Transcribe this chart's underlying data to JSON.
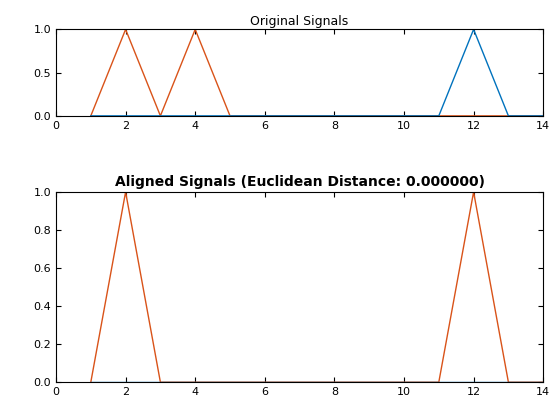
{
  "title1": "Original Signals",
  "title2": "Aligned Signals (Euclidean Distance: 0.000000)",
  "xlim": [
    0,
    14
  ],
  "ylim1": [
    0,
    1
  ],
  "ylim2": [
    0,
    1
  ],
  "xticks": [
    0,
    2,
    4,
    6,
    8,
    10,
    12,
    14
  ],
  "yticks1": [
    0,
    0.5,
    1
  ],
  "yticks2": [
    0,
    0.2,
    0.4,
    0.6,
    0.8,
    1
  ],
  "orange_color": "#D95319",
  "blue_color": "#0072BD",
  "signal1_orange_x": [
    1,
    2,
    3,
    4,
    5,
    6,
    7,
    8,
    9,
    10,
    11,
    12,
    13,
    14
  ],
  "signal1_orange_y": [
    0,
    1,
    0,
    1,
    0,
    0,
    0,
    0,
    0,
    0,
    0,
    0,
    0,
    0
  ],
  "signal1_blue_x": [
    1,
    2,
    3,
    4,
    5,
    6,
    7,
    8,
    9,
    10,
    11,
    12,
    13,
    14
  ],
  "signal1_blue_y": [
    0,
    0,
    0,
    0,
    0,
    0,
    0,
    0,
    0,
    0,
    0,
    1,
    0,
    0
  ],
  "signal2_orange_x": [
    1,
    2,
    3,
    4,
    5,
    6,
    7,
    8,
    9,
    10,
    11,
    12,
    13,
    14
  ],
  "signal2_orange_y": [
    0,
    1,
    0,
    0,
    0,
    0,
    0,
    0,
    0,
    0,
    0,
    1,
    0,
    0
  ],
  "signal2_blue_x": [
    1,
    2,
    3,
    4,
    5,
    6,
    7,
    8,
    9,
    10,
    11,
    12,
    13,
    14
  ],
  "signal2_blue_y": [
    0,
    0,
    0,
    0,
    0,
    0,
    0,
    0,
    0,
    0,
    0,
    0,
    0,
    0
  ],
  "linewidth": 1.0,
  "title1_fontsize": 9,
  "title2_fontsize": 10,
  "title2_fontweight": "bold",
  "background_color": "#ffffff"
}
